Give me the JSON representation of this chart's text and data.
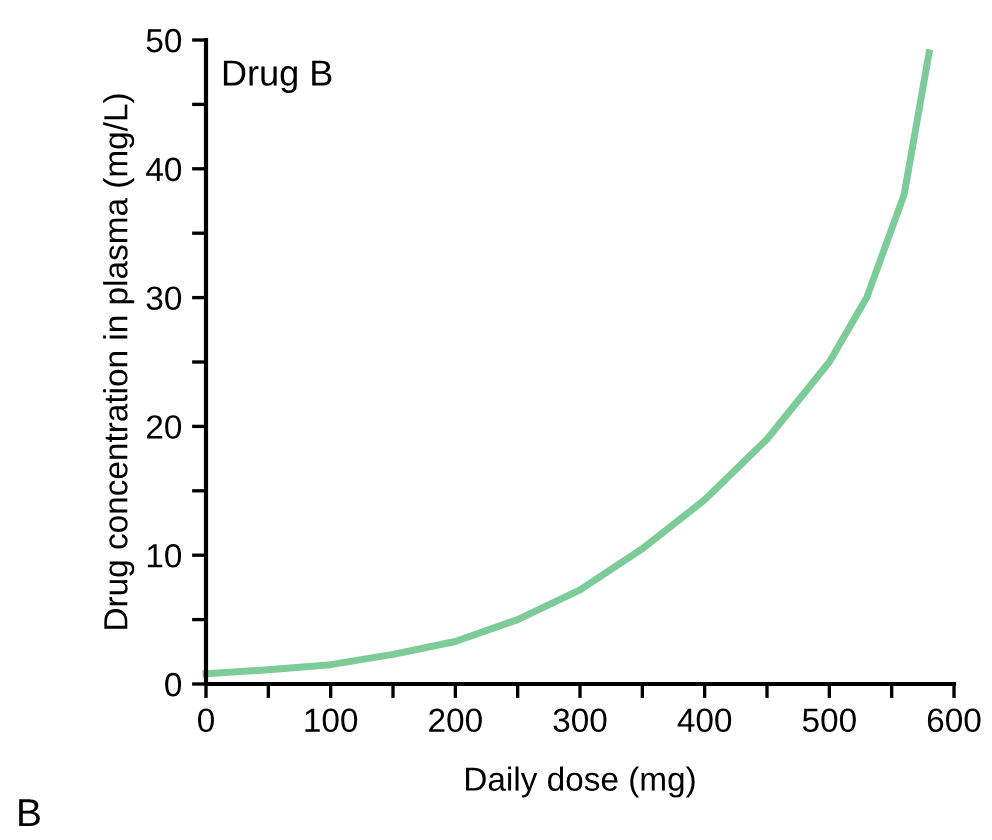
{
  "chart_data": {
    "type": "line",
    "xlabel": "Daily dose (mg)",
    "ylabel": "Drug concentration in plasma (mg/L)",
    "annotations": [
      "Drug B",
      "B"
    ],
    "x": [
      0,
      50,
      100,
      150,
      200,
      250,
      300,
      350,
      400,
      450,
      500,
      530,
      560,
      580
    ],
    "series": [
      {
        "color": "#7ccb98",
        "values": [
          0.8,
          1.1,
          1.5,
          2.3,
          3.3,
          5,
          7.3,
          10.5,
          14.3,
          19,
          25,
          30,
          38,
          49
        ]
      }
    ],
    "xlim": [
      0,
      600
    ],
    "ylim": [
      0,
      50
    ],
    "xticks": [
      0,
      {
        "value": 50,
        "label": null
      },
      100,
      {
        "value": 150,
        "label": null
      },
      200,
      {
        "value": 250,
        "label": null
      },
      300,
      {
        "value": 350,
        "label": null
      },
      400,
      {
        "value": 450,
        "label": null
      },
      500,
      {
        "value": 550,
        "label": null
      },
      600
    ],
    "yticks": [
      0,
      {
        "value": 5,
        "label": null
      },
      10,
      {
        "value": 15,
        "label": null
      },
      20,
      {
        "value": 25,
        "label": null
      },
      30,
      {
        "value": 35,
        "label": null
      },
      40,
      {
        "value": 45,
        "label": null
      },
      50
    ],
    "grid": false,
    "legend": false,
    "marker": "none",
    "line_style": "solid"
  }
}
